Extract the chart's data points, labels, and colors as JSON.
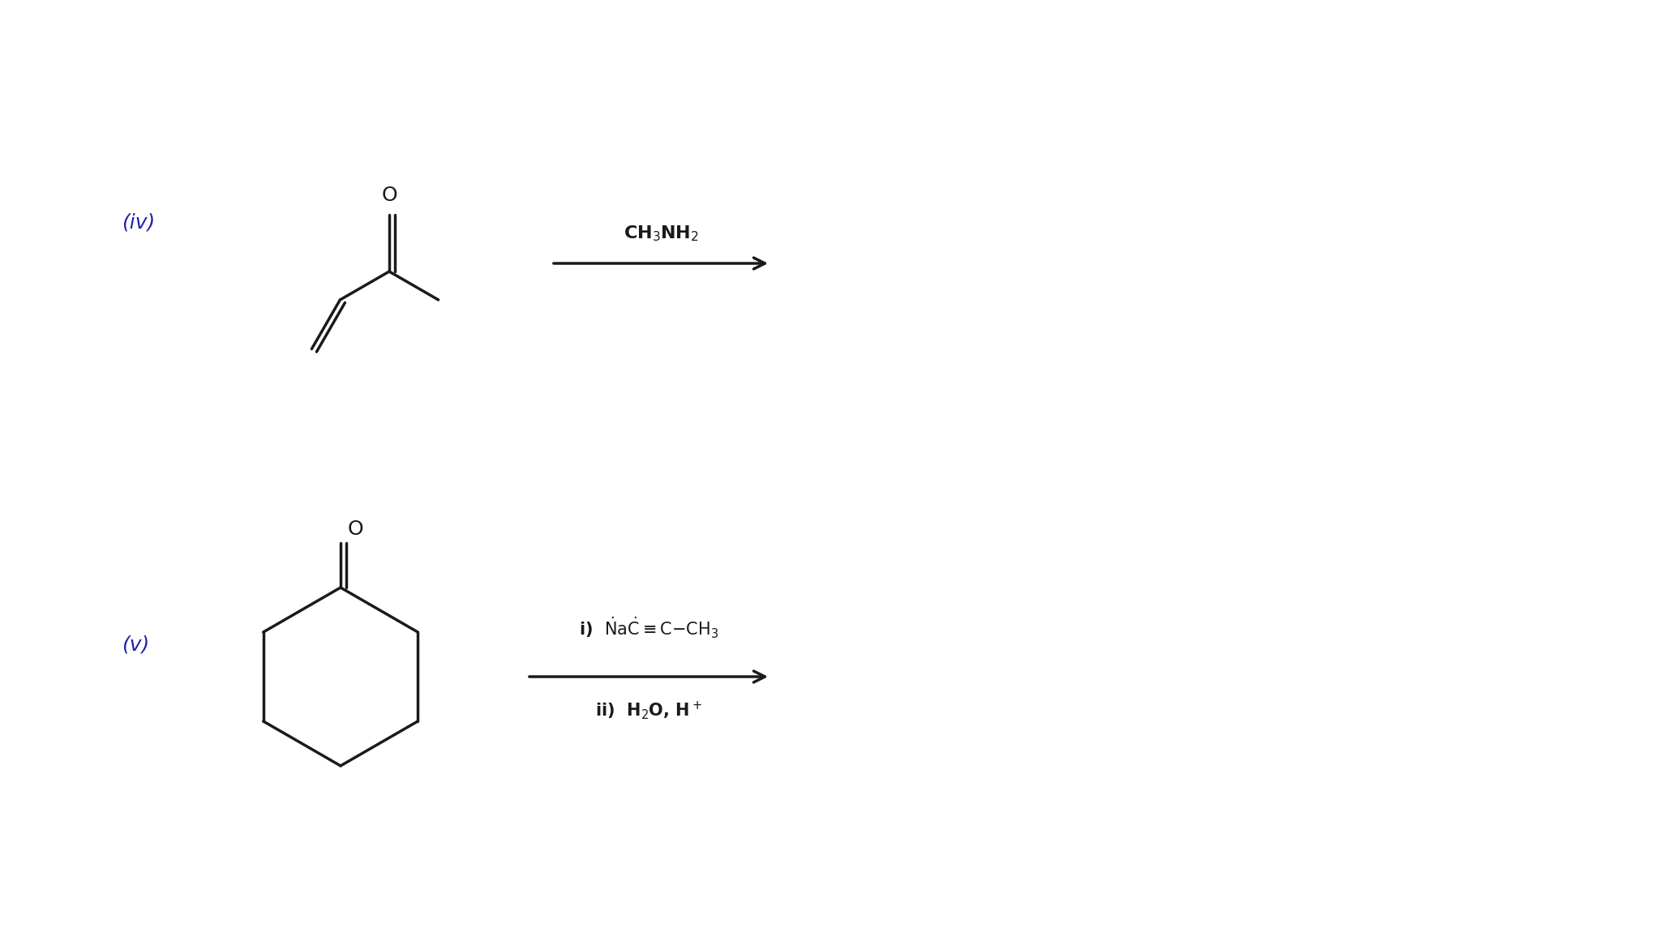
{
  "background_color": "#ffffff",
  "label_iv": "(iv)",
  "label_v": "(v)",
  "arrow_iv_label": "CH$_3$NH$_2$",
  "arrow_v_label_i": "i)  $\\dot{N}$a$\\dot{C}$≡C−CH$_3$",
  "arrow_v_label_ii": "ii)  H$_2$O, H$^+$",
  "text_color": "#1a1a1a",
  "line_color": "#1a1a1a",
  "figsize": [
    20.46,
    11.55
  ],
  "dpi": 100
}
